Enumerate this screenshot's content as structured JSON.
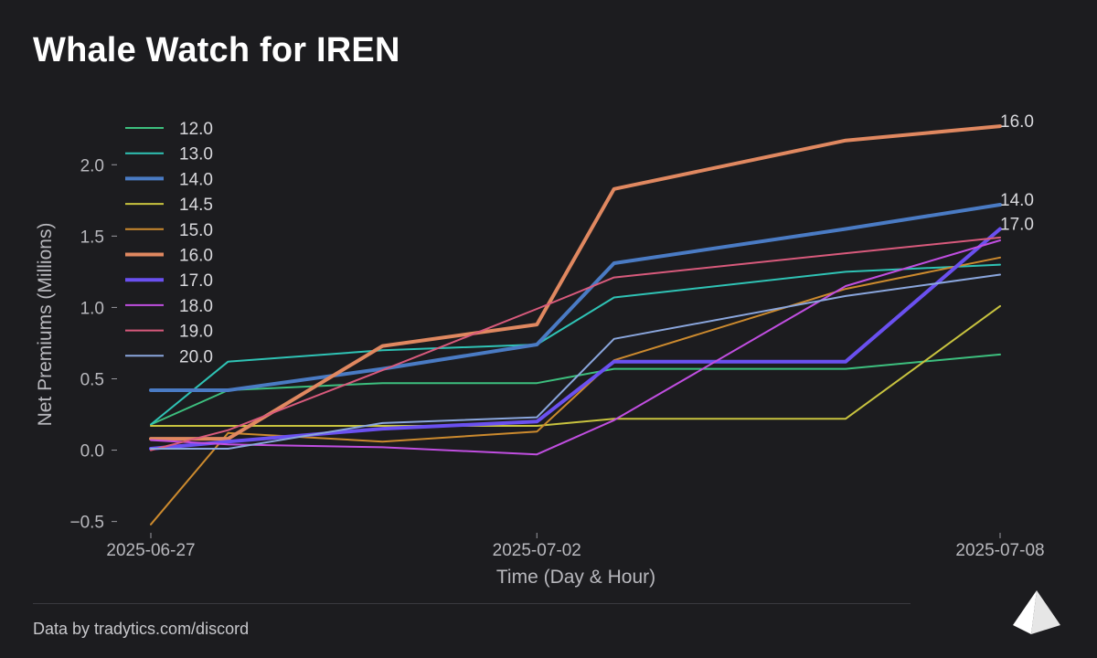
{
  "header": {
    "title": "Whale Watch for IREN"
  },
  "footer": {
    "credit": "Data by tradytics.com/discord"
  },
  "logo": {
    "icon": "triangle-logo-icon"
  },
  "chart_data": {
    "type": "line",
    "title": "Whale Watch for IREN",
    "xlabel": "Time (Day & Hour)",
    "ylabel": "Net Premiums (Millions)",
    "x": [
      "2025-06-27",
      "2025-06-28",
      "2025-06-30",
      "2025-07-02",
      "2025-07-03",
      "2025-07-06",
      "2025-07-08"
    ],
    "xticks": [
      "2025-06-27",
      "2025-07-02",
      "2025-07-08"
    ],
    "yticks": [
      -0.5,
      0.0,
      0.5,
      1.0,
      1.5,
      2.0
    ],
    "ytick_labels": [
      "−0.5",
      "0.0",
      "0.5",
      "1.0",
      "1.5",
      "2.0"
    ],
    "ylim": [
      -0.56,
      2.45
    ],
    "grid": false,
    "legend": "top-left",
    "series": [
      {
        "name": "12.0",
        "color": "#3dbf7e",
        "width": 2,
        "values": [
          0.18,
          0.42,
          0.47,
          0.47,
          0.57,
          0.57,
          0.67
        ]
      },
      {
        "name": "13.0",
        "color": "#2fc3b5",
        "width": 2,
        "values": [
          0.18,
          0.62,
          0.7,
          0.74,
          1.07,
          1.25,
          1.3
        ]
      },
      {
        "name": "14.0",
        "color": "#4a7bc4",
        "width": 4,
        "values": [
          0.42,
          0.42,
          0.57,
          0.74,
          1.31,
          1.55,
          1.72
        ]
      },
      {
        "name": "14.5",
        "color": "#c8c33f",
        "width": 2,
        "values": [
          0.17,
          0.17,
          0.17,
          0.17,
          0.22,
          0.22,
          1.01
        ]
      },
      {
        "name": "15.0",
        "color": "#cc8a2e",
        "width": 2,
        "values": [
          -0.52,
          0.12,
          0.06,
          0.13,
          0.63,
          1.13,
          1.35
        ]
      },
      {
        "name": "16.0",
        "color": "#e08860",
        "width": 4,
        "values": [
          0.08,
          0.08,
          0.73,
          0.88,
          1.83,
          2.17,
          2.27
        ]
      },
      {
        "name": "17.0",
        "color": "#6a50f0",
        "width": 4,
        "values": [
          0.01,
          0.06,
          0.15,
          0.2,
          0.62,
          0.62,
          1.55
        ]
      },
      {
        "name": "18.0",
        "color": "#c04ee0",
        "width": 2,
        "values": [
          0.07,
          0.04,
          0.02,
          -0.03,
          0.21,
          1.15,
          1.47
        ]
      },
      {
        "name": "19.0",
        "color": "#d85a7c",
        "width": 2,
        "values": [
          0.0,
          0.14,
          0.56,
          0.99,
          1.21,
          1.38,
          1.49
        ]
      },
      {
        "name": "20.0",
        "color": "#8aa6dd",
        "width": 2,
        "values": [
          0.01,
          0.01,
          0.19,
          0.23,
          0.78,
          1.08,
          1.23
        ]
      }
    ],
    "end_labels": [
      {
        "text": "16.0",
        "series": "16.0"
      },
      {
        "text": "14.0",
        "series": "14.0"
      },
      {
        "text": "17.0",
        "series": "17.0"
      }
    ]
  }
}
